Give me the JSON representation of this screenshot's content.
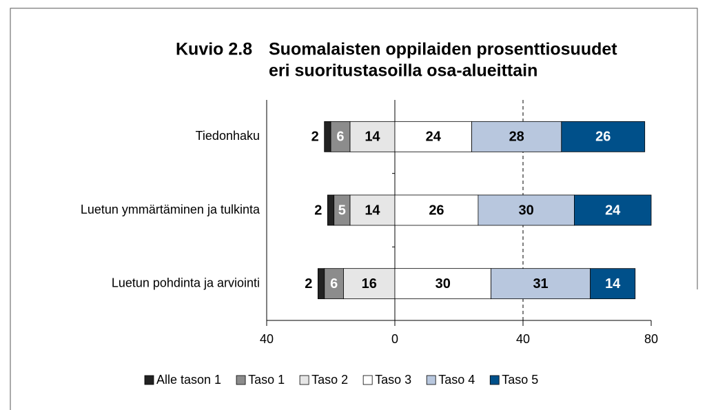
{
  "chart_data": {
    "type": "diverging_stacked_bar",
    "figure_number": "Kuvio 2.8",
    "title": [
      "Suomalaisten oppilaiden prosenttiosuudet",
      "eri suoritustasoilla osa-alueittain"
    ],
    "categories": [
      "Tiedonhaku",
      "Luetun ymmärtäminen ja tulkinta",
      "Luetun pohdinta ja arviointi"
    ],
    "series": [
      {
        "name": "Alle tason 1",
        "color": "#222222",
        "values": [
          -2,
          -2,
          -2
        ],
        "value_labels": [
          "2",
          "2",
          "2"
        ]
      },
      {
        "name": "Taso 1",
        "color": "#8c8c8c",
        "values": [
          -6,
          -5,
          -6
        ],
        "value_labels": [
          "6",
          "5",
          "6"
        ]
      },
      {
        "name": "Taso 2",
        "color": "#e6e6e6",
        "values": [
          -14,
          -14,
          -16
        ],
        "value_labels": [
          "14",
          "14",
          "16"
        ]
      },
      {
        "name": "Taso 3",
        "color": "#ffffff",
        "values": [
          24,
          26,
          30
        ]
      },
      {
        "name": "Taso 4",
        "color": "#b8c7de",
        "values": [
          28,
          30,
          31
        ]
      },
      {
        "name": "Taso 5",
        "color": "#00508a",
        "values": [
          26,
          24,
          14
        ]
      }
    ],
    "xlim": [
      -40,
      80
    ],
    "xticks": [
      {
        "value": -40,
        "label": "40"
      },
      0,
      40,
      80
    ],
    "grid": true,
    "legend": "bottom"
  }
}
